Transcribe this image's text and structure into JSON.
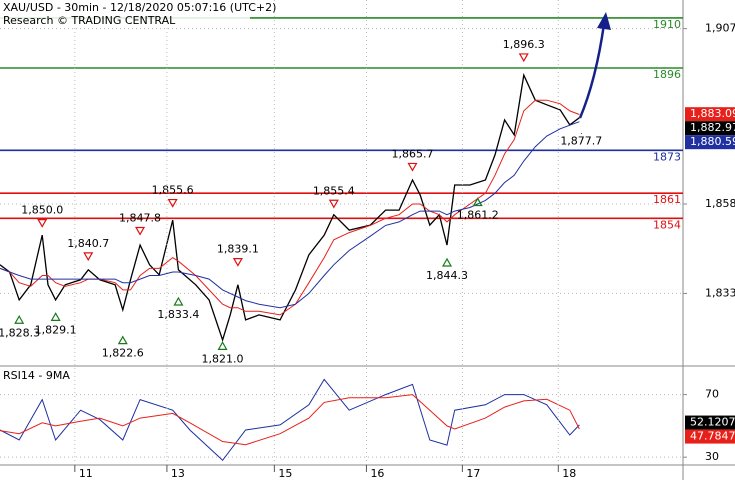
{
  "chart_data": [
    {
      "type": "line",
      "title": "XAU/USD - 30min - 12/18/2020 05:07:16 (UTC+2)",
      "subtitle": "Research © TRADING CENTRAL",
      "x": [
        0,
        5,
        10,
        16,
        22,
        25,
        29,
        34,
        42,
        46,
        52,
        60,
        64,
        68,
        73,
        78,
        83,
        90,
        93,
        102,
        109,
        116,
        120,
        124,
        128,
        135,
        146,
        154,
        161,
        169,
        174,
        182,
        193,
        201,
        208,
        215,
        219,
        224,
        229,
        233,
        237,
        245,
        253,
        258,
        263,
        268,
        273,
        279,
        285,
        292,
        297,
        302
      ],
      "series": [
        {
          "color": "#000000",
          "values": [
            1841,
            1839,
            1831.2,
            1835.4,
            1849.3,
            1835.4,
            1831.2,
            1835.4,
            1836.8,
            1839.6,
            1836.8,
            1835.4,
            1828.4,
            1836.8,
            1846.5,
            1841,
            1838.2,
            1853.5,
            1839.6,
            1835.4,
            1831.2,
            1820,
            1827,
            1835.4,
            1825.6,
            1827,
            1825.6,
            1834,
            1843.8,
            1849.3,
            1855,
            1850.7,
            1852.1,
            1856.3,
            1856.3,
            1864.7,
            1860.5,
            1852.1,
            1855,
            1846.5,
            1863.3,
            1863.3,
            1864.7,
            1871.7,
            1881.5,
            1877.3,
            1894,
            1887,
            1885.7,
            1884.3,
            1880.1,
            1882.1
          ]
        },
        {
          "color": "#e8201a",
          "values": [
            1840,
            1839,
            1836,
            1835,
            1838,
            1838,
            1836,
            1835,
            1836,
            1837,
            1837,
            1836,
            1834,
            1834,
            1838,
            1840,
            1840,
            1843,
            1842,
            1838,
            1834,
            1830,
            1829,
            1829,
            1828,
            1828,
            1827,
            1830,
            1836,
            1843,
            1848,
            1850,
            1852,
            1854,
            1855,
            1858,
            1858,
            1856,
            1855,
            1853,
            1855,
            1858,
            1861,
            1866,
            1872,
            1876,
            1884,
            1887,
            1887,
            1886,
            1884,
            1883
          ]
        },
        {
          "color": "#2030a0",
          "values": [
            1840,
            1839,
            1838,
            1837,
            1837,
            1837,
            1837,
            1837,
            1837,
            1837,
            1837,
            1837,
            1836,
            1836,
            1837,
            1838,
            1838,
            1839,
            1839,
            1838,
            1837,
            1834,
            1833,
            1832,
            1831,
            1830,
            1829,
            1830,
            1833,
            1838,
            1841,
            1845,
            1849,
            1852,
            1853,
            1855,
            1856,
            1856,
            1856,
            1855,
            1856,
            1857,
            1859,
            1861,
            1864,
            1866,
            1870,
            1874,
            1877,
            1879,
            1880,
            1881
          ]
        }
      ],
      "xlim": [
        0,
        356
      ],
      "ylim": [
        1813,
        1915
      ],
      "yticks": [
        {
          "value": 1907,
          "label": "1,907"
        },
        {
          "value": 1858,
          "label": "1,858"
        },
        {
          "value": 1833,
          "label": "1,833"
        }
      ],
      "grid": true,
      "levels": [
        {
          "value": 1910,
          "color": "#2a8a2a"
        },
        {
          "value": 1896,
          "color": "#2a8a2a"
        },
        {
          "value": 1873,
          "color": "#1c2fa0"
        },
        {
          "value": 1861,
          "color": "#e01010"
        },
        {
          "value": 1854,
          "color": "#e01010"
        }
      ],
      "annotations": [
        {
          "x": 10,
          "value": 1828.3,
          "label": "1,828.3",
          "kind": "low"
        },
        {
          "x": 22,
          "value": 1850.0,
          "label": "1,850.0",
          "kind": "high"
        },
        {
          "x": 29,
          "value": 1829.1,
          "label": "1,829.1",
          "kind": "low"
        },
        {
          "x": 46,
          "value": 1840.7,
          "label": "1,840.7",
          "kind": "high"
        },
        {
          "x": 64,
          "value": 1822.6,
          "label": "1,822.6",
          "kind": "low"
        },
        {
          "x": 73,
          "value": 1847.8,
          "label": "1,847.8",
          "kind": "high"
        },
        {
          "x": 90,
          "value": 1855.6,
          "label": "1,855.6",
          "kind": "high"
        },
        {
          "x": 93,
          "value": 1833.4,
          "label": "1,833.4",
          "kind": "low"
        },
        {
          "x": 124,
          "value": 1839.1,
          "label": "1,839.1",
          "kind": "high"
        },
        {
          "x": 116,
          "value": 1821.0,
          "label": "1,821.0",
          "kind": "low"
        },
        {
          "x": 174,
          "value": 1855.4,
          "label": "1,855.4",
          "kind": "high"
        },
        {
          "x": 215,
          "value": 1865.7,
          "label": "1,865.7",
          "kind": "high"
        },
        {
          "x": 233,
          "value": 1844.3,
          "label": "1,844.3",
          "kind": "low"
        },
        {
          "x": 249,
          "value": 1861.2,
          "label": "1,861.2",
          "kind": "low"
        },
        {
          "x": 303,
          "value": 1877.7,
          "label": "1,877.7",
          "kind": "mark"
        },
        {
          "x": 273,
          "value": 1896.3,
          "label": "1,896.3",
          "kind": "high"
        }
      ],
      "price_tags": [
        {
          "value": 1883.09,
          "label": "1,883.09",
          "color": "#e8201a"
        },
        {
          "value": 1882.97,
          "label": "1,882.97",
          "color": "#000000"
        },
        {
          "value": 1880.59,
          "label": "1,880.59",
          "color": "#2030a0"
        }
      ]
    },
    {
      "type": "line",
      "title": "RSI14 - 9MA",
      "x": [
        0,
        10,
        22,
        29,
        42,
        52,
        64,
        73,
        90,
        99,
        116,
        128,
        146,
        161,
        169,
        182,
        201,
        215,
        224,
        233,
        237,
        253,
        263,
        273,
        285,
        297,
        302
      ],
      "series": [
        {
          "color": "#1c2fa0",
          "values": [
            47.4,
            41,
            66.8,
            41,
            60,
            54,
            41,
            66.8,
            60,
            47.4,
            28,
            47.4,
            50.6,
            63.5,
            79.7,
            60,
            70,
            76.5,
            41,
            37.7,
            60,
            63.5,
            70,
            70,
            63.5,
            44.2,
            50.6
          ]
        },
        {
          "color": "#e8201a",
          "values": [
            47,
            45,
            52,
            50,
            53,
            55,
            50,
            55,
            58,
            52,
            40,
            38,
            45,
            55,
            65,
            68,
            68,
            70,
            60,
            50,
            48,
            55,
            62,
            66,
            67,
            60,
            48
          ]
        }
      ],
      "xlim": [
        0,
        356
      ],
      "ylim": [
        25,
        87
      ],
      "yticks": [
        70,
        30
      ],
      "xticks": [
        {
          "value": 39,
          "label": "11"
        },
        {
          "value": 87,
          "label": "13"
        },
        {
          "value": 143,
          "label": "15"
        },
        {
          "value": 191,
          "label": "16"
        },
        {
          "value": 241,
          "label": "17"
        },
        {
          "value": 291,
          "label": "18"
        }
      ],
      "grid": true,
      "price_tags": [
        {
          "value": 52.1207,
          "color": "#000000"
        },
        {
          "value": 47.7847,
          "color": "#e8201a"
        }
      ]
    }
  ]
}
